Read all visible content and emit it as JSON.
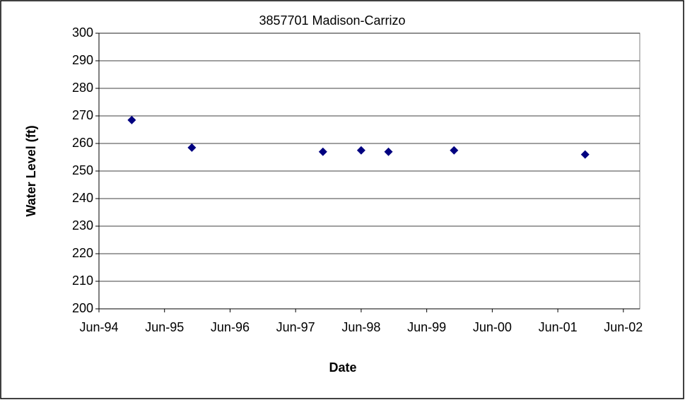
{
  "chart_data": {
    "type": "scatter",
    "title": "3857701 Madison-Carrizo",
    "x_label": "Date",
    "y_label": "Water Level (ft)",
    "x": [
      "1994-12",
      "1995-11",
      "1997-11",
      "1998-06",
      "1998-11",
      "1999-11",
      "2001-11"
    ],
    "values": [
      268.5,
      258.5,
      257,
      257.5,
      257,
      257.5,
      256
    ],
    "color": "#000080",
    "xlim": [
      "1994-06",
      "2002-09"
    ],
    "xticks": [
      {
        "value": "1994-06",
        "label": "Jun-94"
      },
      {
        "value": "1995-06",
        "label": "Jun-95"
      },
      {
        "value": "1996-06",
        "label": "Jun-96"
      },
      {
        "value": "1997-06",
        "label": "Jun-97"
      },
      {
        "value": "1998-06",
        "label": "Jun-98"
      },
      {
        "value": "1999-06",
        "label": "Jun-99"
      },
      {
        "value": "2000-06",
        "label": "Jun-00"
      },
      {
        "value": "2001-06",
        "label": "Jun-01"
      },
      {
        "value": "2002-06",
        "label": "Jun-02"
      }
    ],
    "ylim": [
      200,
      300
    ],
    "yticks": [
      200,
      210,
      220,
      230,
      240,
      250,
      260,
      270,
      280,
      290,
      300
    ],
    "grid": true
  }
}
